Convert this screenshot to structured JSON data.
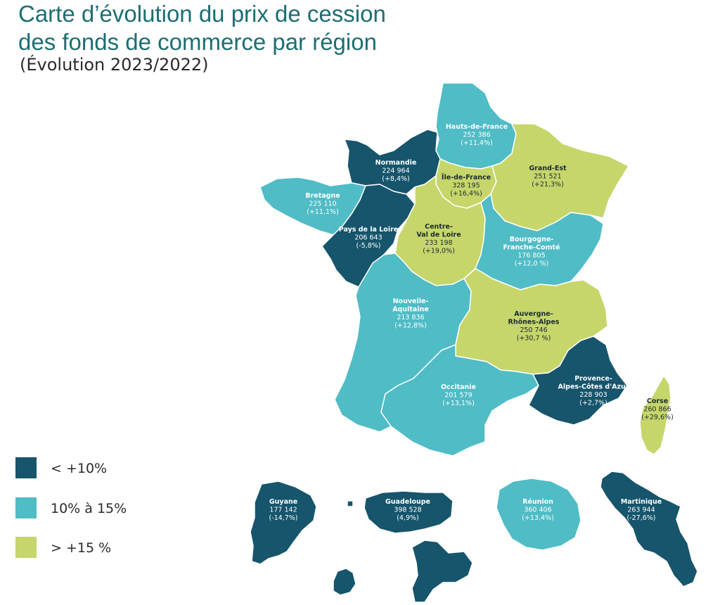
{
  "title_line1": "Carte d’évolution du prix de cession",
  "title_line2": "des fonds de commerce par région",
  "subtitle": "(Évolution 2023/2022)",
  "colors": {
    "low": "#16556c",
    "mid": "#4fbcc6",
    "high": "#c6d66b",
    "title": "#1c6e73"
  },
  "legend": [
    {
      "label": "< +10%",
      "category": "low"
    },
    {
      "label": "10% à 15%",
      "category": "mid"
    },
    {
      "label": "> +15 %",
      "category": "high"
    }
  ],
  "regions": [
    {
      "id": "hauts-de-france",
      "category": "mid",
      "lines": [
        "Hauts-de-France"
      ],
      "price": "252 386",
      "change": "(+11,4%)"
    },
    {
      "id": "normandie",
      "category": "low",
      "lines": [
        "Normandie"
      ],
      "price": "224 964",
      "change": "(+8,4%)"
    },
    {
      "id": "ile-de-france",
      "category": "high",
      "lines": [
        "Île-de-France"
      ],
      "price": "328 195",
      "change": "(+16,4%)"
    },
    {
      "id": "grand-est",
      "category": "high",
      "lines": [
        "Grand-Est"
      ],
      "price": "251 521",
      "change": "(+21,3%)"
    },
    {
      "id": "bretagne",
      "category": "mid",
      "lines": [
        "Bretagne"
      ],
      "price": "225 110",
      "change": "(+11,1%)"
    },
    {
      "id": "pays-de-la-loire",
      "category": "low",
      "lines": [
        "Pays de la Loire"
      ],
      "price": "206 643",
      "change": "(-5,8%)"
    },
    {
      "id": "centre-val-de-loire",
      "category": "high",
      "lines": [
        "Centre-",
        "Val de Loire"
      ],
      "price": "233 198",
      "change": "(+19,0%)"
    },
    {
      "id": "bourgogne-franche-comte",
      "category": "mid",
      "lines": [
        "Bourgogne-",
        "Franche-Comté"
      ],
      "price": "176 805",
      "change": "(+12,0 %)"
    },
    {
      "id": "nouvelle-aquitaine",
      "category": "mid",
      "lines": [
        "Nouvelle-",
        "Aquitaine"
      ],
      "price": "213 836",
      "change": "(+12,8%)"
    },
    {
      "id": "auvergne-rhone-alpes",
      "category": "high",
      "lines": [
        "Auvergne-",
        "Rhônes-Alpes"
      ],
      "price": "250 746",
      "change": "(+30,7 %)"
    },
    {
      "id": "occitanie",
      "category": "mid",
      "lines": [
        "Occitanie"
      ],
      "price": "201 579",
      "change": "(+13,1%)"
    },
    {
      "id": "provence-alpes-cote-dazur",
      "category": "low",
      "lines": [
        "Provence-",
        "Alpes-Côtes d'Azur"
      ],
      "price": "228 903",
      "change": "(+2,7%)"
    },
    {
      "id": "corse",
      "category": "high",
      "lines": [
        "Corse"
      ],
      "price": "260 866",
      "change": "(+29,6%)"
    },
    {
      "id": "guyane",
      "category": "low",
      "lines": [
        "Guyane"
      ],
      "price": "177 142",
      "change": "(-14,7%)"
    },
    {
      "id": "guadeloupe",
      "category": "low",
      "lines": [
        "Guadeloupe"
      ],
      "price": "398 528",
      "change": "(4,9%)"
    },
    {
      "id": "reunion",
      "category": "mid",
      "lines": [
        "Réunion"
      ],
      "price": "360 406",
      "change": "(+13,4%)"
    },
    {
      "id": "martinique",
      "category": "low",
      "lines": [
        "Martinique"
      ],
      "price": "263 944",
      "change": "(-27,6%)"
    }
  ]
}
